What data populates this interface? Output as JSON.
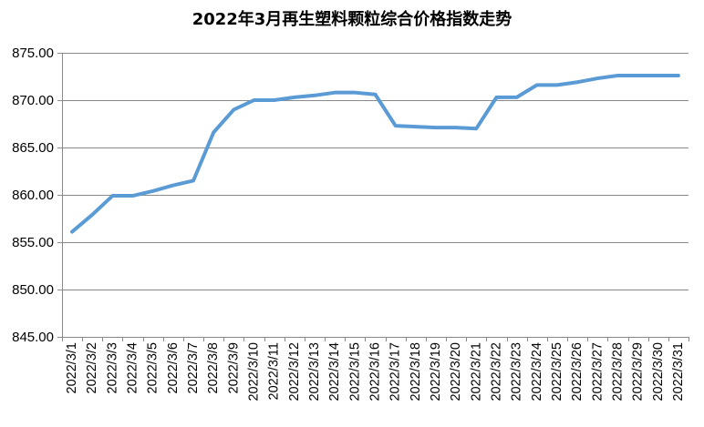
{
  "chart_data": {
    "type": "line",
    "title": "2022年3月再生塑料颗粒综合价格指数走势",
    "xlabel": "",
    "ylabel": "",
    "categories": [
      "2022/3/1",
      "2022/3/2",
      "2022/3/3",
      "2022/3/4",
      "2022/3/5",
      "2022/3/6",
      "2022/3/7",
      "2022/3/8",
      "2022/3/9",
      "2022/3/10",
      "2022/3/11",
      "2022/3/12",
      "2022/3/13",
      "2022/3/14",
      "2022/3/15",
      "2022/3/16",
      "2022/3/17",
      "2022/3/18",
      "2022/3/19",
      "2022/3/20",
      "2022/3/21",
      "2022/3/22",
      "2022/3/23",
      "2022/3/24",
      "2022/3/25",
      "2022/3/26",
      "2022/3/27",
      "2022/3/28",
      "2022/3/29",
      "2022/3/30",
      "2022/3/31"
    ],
    "series": [
      {
        "color": "#5B9BD5",
        "values": [
          856.1,
          857.9,
          859.9,
          859.9,
          860.4,
          861.0,
          861.5,
          866.6,
          869.0,
          870.0,
          870.0,
          870.3,
          870.5,
          870.8,
          870.8,
          870.6,
          867.3,
          867.2,
          867.1,
          867.1,
          867.0,
          870.3,
          870.3,
          871.6,
          871.6,
          871.9,
          872.3,
          872.6,
          872.6,
          872.6,
          872.6
        ]
      }
    ],
    "ylim": [
      845,
      875
    ],
    "yticks": [
      845,
      850,
      855,
      860,
      865,
      870,
      875
    ],
    "ytick_labels": [
      "845.00",
      "850.00",
      "855.00",
      "860.00",
      "865.00",
      "870.00",
      "875.00"
    ],
    "grid": true,
    "legend": "none"
  },
  "colors": {
    "line": "#5B9BD5",
    "grid": "#8A8A8A",
    "axis": "#8A8A8A",
    "background": "#FFFFFF"
  }
}
